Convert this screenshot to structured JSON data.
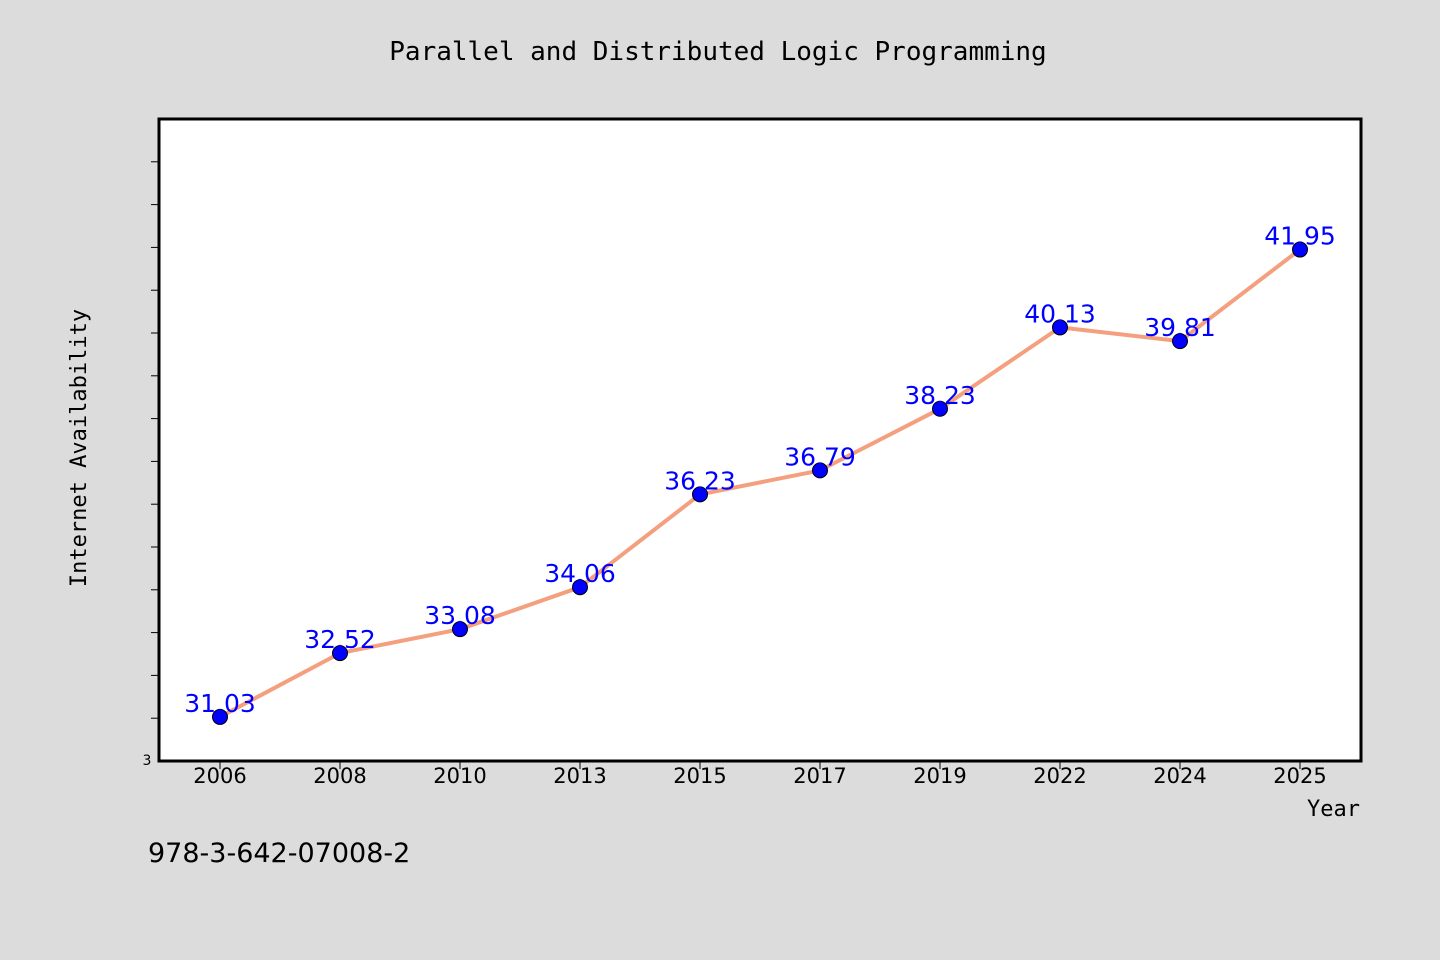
{
  "chart_data": {
    "type": "line",
    "title": "Parallel and Distributed Logic Programming",
    "xlabel": "Year",
    "ylabel": "Internet Availability",
    "categories": [
      "2006",
      "2008",
      "2010",
      "2013",
      "2015",
      "2017",
      "2019",
      "2022",
      "2024",
      "2025"
    ],
    "series": [
      {
        "values": [
          31.03,
          32.52,
          33.08,
          34.06,
          36.23,
          36.79,
          38.23,
          40.13,
          39.81,
          41.95
        ],
        "line_color": "#f4a07f",
        "marker_color": "#0000ff"
      }
    ],
    "y_axis_bottom_label": "3",
    "ylim": [
      30,
      45
    ],
    "grid": false,
    "data_labels": [
      "31.03",
      "32.52",
      "33.08",
      "34.06",
      "36.23",
      "36.79",
      "38.23",
      "40.13",
      "39.81",
      "41.95"
    ],
    "label_color": "#0000ff"
  },
  "footer": {
    "isbn": "978-3-642-07008-2"
  },
  "colors": {
    "background": "#dcdcdc",
    "plot_background": "#ffffff"
  }
}
